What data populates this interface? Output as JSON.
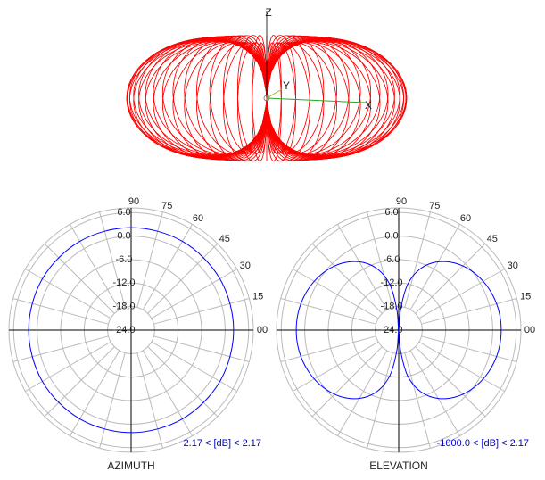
{
  "chart_data": [
    {
      "type": "surface3d",
      "axis_labels": [
        "X",
        "Y",
        "Z"
      ],
      "color": "#ff0000"
    },
    {
      "type": "polar",
      "title": "AZIMUTH",
      "range_label": "2.17 < [dB] < 2.17",
      "theta": [
        0,
        30,
        60,
        90,
        120,
        150,
        180,
        210,
        240,
        270,
        300,
        330
      ],
      "series": [
        {
          "color": "#0000ff",
          "values": [
            2.17,
            2.17,
            2.17,
            2.17,
            2.17,
            2.17,
            2.17,
            2.17,
            2.17,
            2.17,
            2.17,
            2.17
          ]
        }
      ],
      "rlim": [
        -24,
        7.2
      ],
      "rticks": [
        {
          "value": 6,
          "label": "6.0"
        },
        {
          "value": 0,
          "label": "0.0"
        },
        {
          "value": -6,
          "label": "-6.0"
        },
        {
          "value": -12,
          "label": "-12.0"
        },
        {
          "value": -18,
          "label": "-18.0"
        },
        {
          "value": -24,
          "label": "-24.0"
        }
      ],
      "thetaticks": [
        90,
        75,
        60,
        45,
        30,
        15,
        {
          "value": 0,
          "label": "00"
        }
      ]
    },
    {
      "type": "polar",
      "title": "ELEVATION",
      "range_label": "-1000.0 < [dB] < 2.17",
      "theta": [
        0,
        5,
        10,
        15,
        20,
        25,
        30,
        35,
        40,
        45,
        50,
        55,
        60,
        65,
        70,
        75,
        80,
        85,
        90,
        95,
        100,
        105,
        110,
        115,
        120,
        125,
        130,
        135,
        140,
        145,
        150,
        155,
        160,
        165,
        170,
        175,
        180,
        185,
        190,
        195,
        200,
        205,
        210,
        215,
        220,
        225,
        230,
        235,
        240,
        245,
        250,
        255,
        260,
        265,
        270,
        275,
        280,
        285,
        290,
        295,
        300,
        305,
        310,
        315,
        320,
        325,
        330,
        335,
        340,
        345,
        350,
        355
      ],
      "series": [
        {
          "color": "#0000ff",
          "values": [
            2.17,
            2.14,
            2.04,
            1.87,
            1.63,
            1.31,
            0.92,
            0.44,
            -0.15,
            -0.84,
            -1.67,
            -2.66,
            -3.85,
            -5.31,
            -7.15,
            -9.57,
            -13.04,
            -19.02,
            -1000,
            -19.02,
            -13.04,
            -9.57,
            -7.15,
            -5.31,
            -3.85,
            -2.66,
            -1.67,
            -0.84,
            -0.15,
            0.44,
            0.92,
            1.31,
            1.63,
            1.87,
            2.04,
            2.14,
            2.17,
            2.14,
            2.04,
            1.87,
            1.63,
            1.31,
            0.92,
            0.44,
            -0.15,
            -0.84,
            -1.67,
            -2.66,
            -3.85,
            -5.31,
            -7.15,
            -9.57,
            -13.04,
            -19.02,
            -1000,
            -19.02,
            -13.04,
            -9.57,
            -7.15,
            -5.31,
            -3.85,
            -2.66,
            -1.67,
            -0.84,
            -0.15,
            0.44,
            0.92,
            1.31,
            1.63,
            1.87,
            2.04,
            2.14
          ]
        }
      ],
      "rlim": [
        -24,
        7.2
      ],
      "rticks": [
        {
          "value": 6,
          "label": "6.0"
        },
        {
          "value": 0,
          "label": "0.0"
        },
        {
          "value": -6,
          "label": "-6.0"
        },
        {
          "value": -12,
          "label": "-12.0"
        },
        {
          "value": -18,
          "label": "-18.0"
        },
        {
          "value": -24,
          "label": "-24.0"
        }
      ],
      "thetaticks": [
        90,
        75,
        60,
        45,
        30,
        15,
        {
          "value": 0,
          "label": "00"
        }
      ]
    }
  ]
}
